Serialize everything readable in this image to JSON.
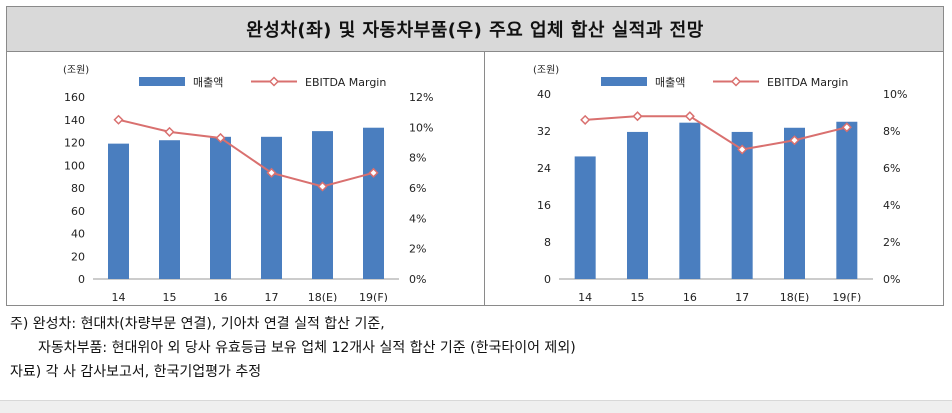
{
  "title": "완성차(좌) 및 자동차부품(우) 주요 업체 합산 실적과 전망",
  "colors": {
    "bar": "#4a7ebf",
    "line": "#d9706f",
    "title_bg": "#d9d9d9"
  },
  "chart_data": [
    {
      "type": "bar",
      "categories": [
        "14",
        "15",
        "16",
        "17",
        "18(E)",
        "19(F)"
      ],
      "series": [
        {
          "name": "매출액",
          "type": "bar",
          "axis": "left",
          "values": [
            119,
            122,
            125,
            125,
            130,
            133
          ]
        },
        {
          "name": "EBITDA Margin",
          "type": "line",
          "axis": "right",
          "values": [
            10.5,
            9.7,
            9.3,
            7.0,
            6.1,
            7.0
          ]
        }
      ],
      "y_unit": "(조원)",
      "ylim": [
        0,
        160
      ],
      "yticks": [
        "160",
        "140",
        "120",
        "100",
        "80",
        "60",
        "40",
        "20",
        "0"
      ],
      "y2lim": [
        0,
        12
      ],
      "y2ticks": [
        "12%",
        "10%",
        "8%",
        "6%",
        "4%",
        "2%",
        "0%"
      ],
      "legend": "top",
      "grid": false
    },
    {
      "type": "bar",
      "categories": [
        "14",
        "15",
        "16",
        "17",
        "18(E)",
        "19(F)"
      ],
      "series": [
        {
          "name": "매출액",
          "type": "bar",
          "axis": "left",
          "values": [
            26.5,
            31.8,
            33.8,
            31.8,
            32.7,
            34.0
          ]
        },
        {
          "name": "EBITDA Margin",
          "type": "line",
          "axis": "right",
          "values": [
            8.6,
            8.8,
            8.8,
            7.0,
            7.5,
            8.2
          ]
        }
      ],
      "y_unit": "(조원)",
      "ylim": [
        0,
        40
      ],
      "yticks": [
        "40",
        "32",
        "24",
        "16",
        "8",
        "0"
      ],
      "y2lim": [
        0,
        10
      ],
      "y2ticks": [
        "10%",
        "8%",
        "6%",
        "4%",
        "2%",
        "0%"
      ],
      "legend": "top",
      "grid": false
    }
  ],
  "notes": {
    "line1": "주) 완성차: 현대차(차량부문 연결), 기아차 연결 실적 합산 기준,",
    "line2": "자동차부품: 현대위아 외 당사 유효등급 보유 업체 12개사 실적 합산 기준 (한국타이어 제외)",
    "line3": "자료) 각 사 감사보고서, 한국기업평가 추정"
  }
}
